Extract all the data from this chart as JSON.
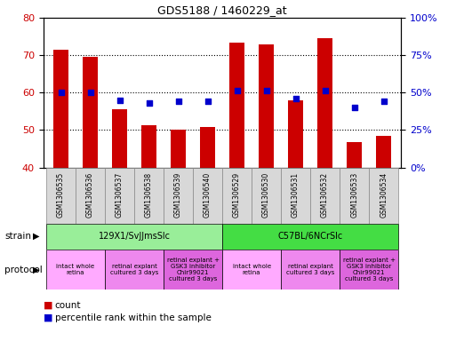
{
  "title": "GDS5188 / 1460229_at",
  "samples": [
    "GSM1306535",
    "GSM1306536",
    "GSM1306537",
    "GSM1306538",
    "GSM1306539",
    "GSM1306540",
    "GSM1306529",
    "GSM1306530",
    "GSM1306531",
    "GSM1306532",
    "GSM1306533",
    "GSM1306534"
  ],
  "bar_values": [
    71.5,
    69.5,
    55.5,
    51.2,
    50.2,
    50.7,
    73.2,
    72.8,
    58.0,
    74.5,
    46.8,
    48.5
  ],
  "percentile_right": [
    50,
    50,
    45,
    43,
    44,
    44,
    51,
    51,
    46,
    51,
    40,
    44
  ],
  "bar_color": "#cc0000",
  "percentile_color": "#0000cc",
  "ylim_left": [
    40,
    80
  ],
  "ylim_right": [
    0,
    100
  ],
  "yticks_left": [
    40,
    50,
    60,
    70,
    80
  ],
  "yticks_right": [
    0,
    25,
    50,
    75,
    100
  ],
  "strain_groups": [
    {
      "label": "129X1/SvJJmsSlc",
      "start": 0,
      "end": 6,
      "color": "#99ee99"
    },
    {
      "label": "C57BL/6NCrSlc",
      "start": 6,
      "end": 12,
      "color": "#44dd44"
    }
  ],
  "protocol_groups": [
    {
      "label": "intact whole\nretina",
      "start": 0,
      "end": 2,
      "color": "#ffaaff"
    },
    {
      "label": "retinal explant\ncultured 3 days",
      "start": 2,
      "end": 4,
      "color": "#ee88ee"
    },
    {
      "label": "retinal explant +\nGSK3 inhibitor\nChir99021\ncultured 3 days",
      "start": 4,
      "end": 6,
      "color": "#dd66dd"
    },
    {
      "label": "intact whole\nretina",
      "start": 6,
      "end": 8,
      "color": "#ffaaff"
    },
    {
      "label": "retinal explant\ncultured 3 days",
      "start": 8,
      "end": 10,
      "color": "#ee88ee"
    },
    {
      "label": "retinal explant +\nGSK3 inhibitor\nChir99021\ncultured 3 days",
      "start": 10,
      "end": 12,
      "color": "#dd66dd"
    }
  ],
  "strain_label": "strain",
  "protocol_label": "protocol",
  "legend_count_color": "#cc0000",
  "legend_percentile_color": "#0000cc",
  "bg_color": "#ffffff",
  "axis_left_color": "#cc0000",
  "axis_right_color": "#0000cc"
}
